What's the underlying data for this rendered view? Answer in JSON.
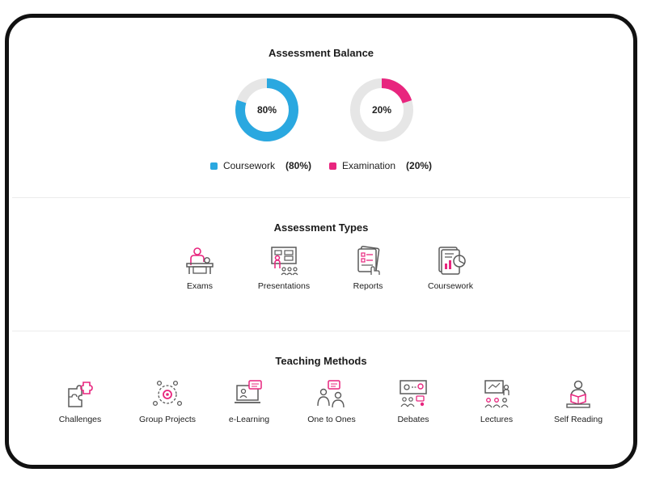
{
  "colors": {
    "coursework": "#2aa8e0",
    "examination": "#e8257e",
    "track": "#e6e6e6",
    "icon_gray": "#5a5a5a",
    "icon_pink": "#e8257e"
  },
  "balance": {
    "title": "Assessment Balance",
    "donuts": [
      {
        "label": "80%",
        "value": 80,
        "color_key": "coursework"
      },
      {
        "label": "20%",
        "value": 20,
        "color_key": "examination"
      }
    ],
    "legend": [
      {
        "name": "Coursework",
        "value": "(80%)"
      },
      {
        "name": "Examination",
        "value": "(20%)"
      }
    ]
  },
  "assessment_types": {
    "title": "Assessment Types",
    "items": [
      {
        "label": "Exams",
        "icon": "exam-desk-icon"
      },
      {
        "label": "Presentations",
        "icon": "presentation-board-icon"
      },
      {
        "label": "Reports",
        "icon": "report-document-icon"
      },
      {
        "label": "Coursework",
        "icon": "coursework-files-icon"
      }
    ]
  },
  "teaching_methods": {
    "title": "Teaching Methods",
    "items": [
      {
        "label": "Challenges",
        "icon": "puzzle-icon"
      },
      {
        "label": "Group Projects",
        "icon": "group-gear-icon"
      },
      {
        "label": "e-Learning",
        "icon": "laptop-chat-icon"
      },
      {
        "label": "One to Ones",
        "icon": "two-people-chat-icon"
      },
      {
        "label": "Debates",
        "icon": "debate-board-icon"
      },
      {
        "label": "Lectures",
        "icon": "lecture-board-icon"
      },
      {
        "label": "Self Reading",
        "icon": "reading-person-icon"
      }
    ]
  }
}
